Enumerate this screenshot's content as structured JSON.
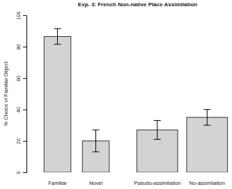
{
  "chart_data": {
    "type": "bar",
    "title": "Exp. 3: French Non-native Place Assimilation",
    "y_label": "% Choice of Familiar Object",
    "categories": [
      "Familiar",
      "Novel",
      "Pseudo-assimilation",
      "No-assimilation"
    ],
    "values": [
      86.5,
      20,
      27,
      35
    ],
    "errors": [
      5,
      7,
      6,
      5
    ],
    "color": "#d3d3d3",
    "ylim": [
      0,
      100
    ],
    "yticks": [
      0,
      20,
      40,
      60,
      80,
      100
    ],
    "grid": false
  }
}
